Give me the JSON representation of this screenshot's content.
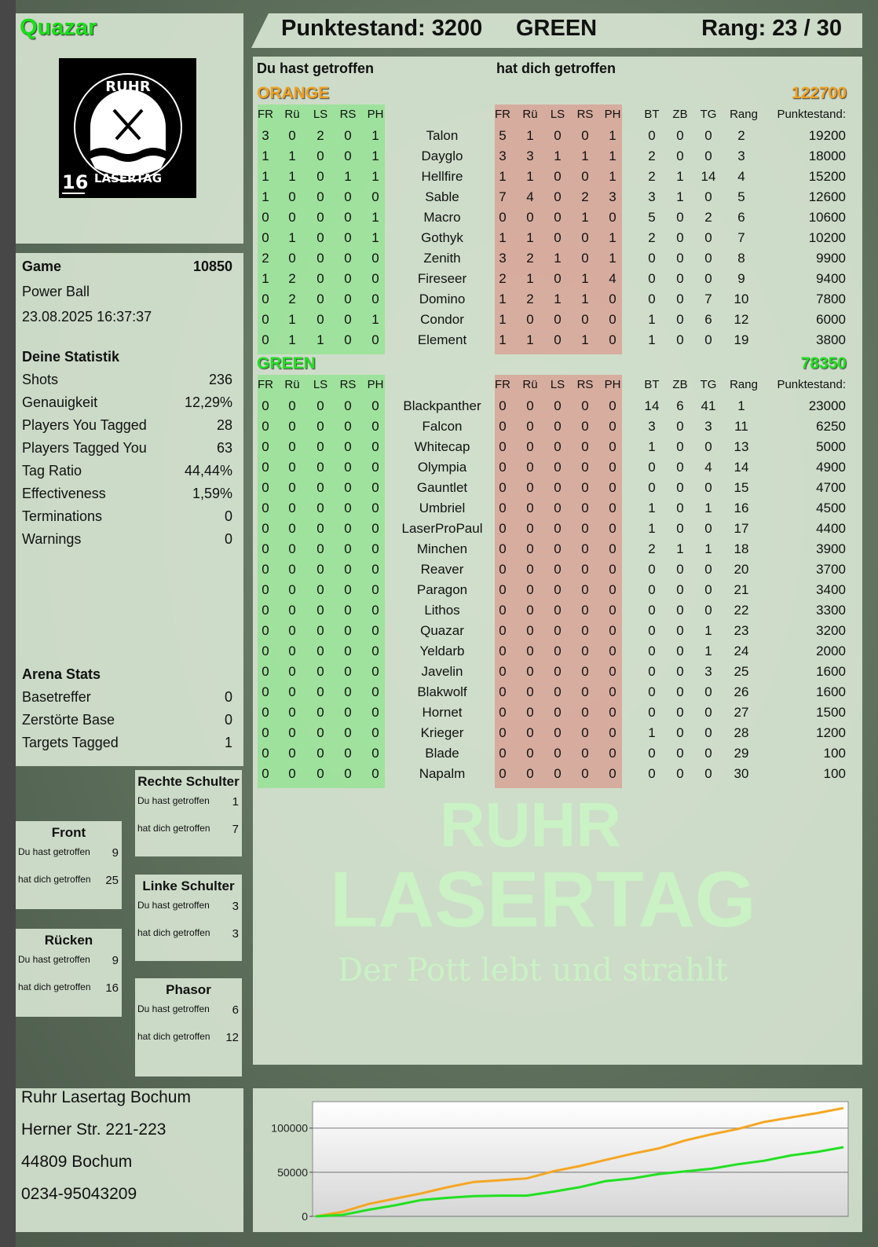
{
  "player": {
    "name": "Quazar",
    "logo_text": "RUHR LASERTAG",
    "logo_badge": "16"
  },
  "header": {
    "score_label": "Punktestand: 3200",
    "team": "GREEN",
    "rank_label": "Rang: 23 / 30"
  },
  "game": {
    "label": "Game",
    "id": "10850",
    "mode": "Power Ball",
    "datetime": "23.08.2025 16:37:37"
  },
  "stats": {
    "title": "Deine Statistik",
    "rows": [
      {
        "label": "Shots",
        "value": "236"
      },
      {
        "label": "Genauigkeit",
        "value": "12,29%"
      },
      {
        "label": "Players You Tagged",
        "value": "28"
      },
      {
        "label": "Players Tagged You",
        "value": "63"
      },
      {
        "label": "Tag Ratio",
        "value": "44,44%"
      },
      {
        "label": "Effectiveness",
        "value": "1,59%"
      },
      {
        "label": "Terminations",
        "value": "0"
      },
      {
        "label": "Warnings",
        "value": "0"
      }
    ]
  },
  "arena": {
    "title": "Arena Stats",
    "rows": [
      {
        "label": "Basetreffer",
        "value": "0"
      },
      {
        "label": "Zerstörte Base",
        "value": "0"
      },
      {
        "label": "Targets Tagged",
        "value": "1"
      }
    ]
  },
  "hit_zones": {
    "label_you_hit": "Du hast getroffen",
    "label_hit_you": "hat dich getroffen",
    "zones": [
      {
        "name": "Rechte Schulter",
        "you_hit": "1",
        "hit_you": "7"
      },
      {
        "name": "Front",
        "you_hit": "9",
        "hit_you": "25"
      },
      {
        "name": "Linke Schulter",
        "you_hit": "3",
        "hit_you": "3"
      },
      {
        "name": "Rücken",
        "you_hit": "9",
        "hit_you": "16"
      },
      {
        "name": "Phasor",
        "you_hit": "6",
        "hit_you": "12"
      }
    ]
  },
  "address": {
    "lines": [
      "Ruhr Lasertag Bochum",
      "Herner Str. 221-223",
      "44809 Bochum",
      "0234-95043209"
    ]
  },
  "table": {
    "you_hit_label": "Du hast getroffen",
    "hit_you_label": "hat dich getroffen",
    "hit_cols": [
      "FR",
      "Rü",
      "LS",
      "RS",
      "PH"
    ],
    "extra_cols": [
      "BT",
      "ZB",
      "TG",
      "Rang",
      "Punktestand:"
    ],
    "teams": [
      {
        "name": "ORANGE",
        "score": "122700",
        "color": "#f0a020",
        "players": [
          [
            "Talon",
            [
              3,
              0,
              2,
              0,
              1
            ],
            [
              5,
              1,
              0,
              0,
              1
            ],
            0,
            0,
            0,
            2,
            19200
          ],
          [
            "Dayglo",
            [
              1,
              1,
              0,
              0,
              1
            ],
            [
              3,
              3,
              1,
              1,
              1
            ],
            2,
            0,
            0,
            3,
            18000
          ],
          [
            "Hellfire",
            [
              1,
              1,
              0,
              1,
              1
            ],
            [
              1,
              1,
              0,
              0,
              1
            ],
            2,
            1,
            14,
            4,
            15200
          ],
          [
            "Sable",
            [
              1,
              0,
              0,
              0,
              0
            ],
            [
              7,
              4,
              0,
              2,
              3
            ],
            3,
            1,
            0,
            5,
            12600
          ],
          [
            "Macro",
            [
              0,
              0,
              0,
              0,
              1
            ],
            [
              0,
              0,
              0,
              1,
              0
            ],
            5,
            0,
            2,
            6,
            10600
          ],
          [
            "Gothyk",
            [
              0,
              1,
              0,
              0,
              1
            ],
            [
              1,
              1,
              0,
              0,
              1
            ],
            2,
            0,
            0,
            7,
            10200
          ],
          [
            "Zenith",
            [
              2,
              0,
              0,
              0,
              0
            ],
            [
              3,
              2,
              1,
              0,
              1
            ],
            0,
            0,
            0,
            8,
            9900
          ],
          [
            "Fireseer",
            [
              1,
              2,
              0,
              0,
              0
            ],
            [
              2,
              1,
              0,
              1,
              4
            ],
            0,
            0,
            0,
            9,
            9400
          ],
          [
            "Domino",
            [
              0,
              2,
              0,
              0,
              0
            ],
            [
              1,
              2,
              1,
              1,
              0
            ],
            0,
            0,
            7,
            10,
            7800
          ],
          [
            "Condor",
            [
              0,
              1,
              0,
              0,
              1
            ],
            [
              1,
              0,
              0,
              0,
              0
            ],
            1,
            0,
            6,
            12,
            6000
          ],
          [
            "Element",
            [
              0,
              1,
              1,
              0,
              0
            ],
            [
              1,
              1,
              0,
              1,
              0
            ],
            1,
            0,
            0,
            19,
            3800
          ]
        ]
      },
      {
        "name": "GREEN",
        "score": "78350",
        "color": "#22e022",
        "players": [
          [
            "Blackpanther",
            [
              0,
              0,
              0,
              0,
              0
            ],
            [
              0,
              0,
              0,
              0,
              0
            ],
            14,
            6,
            41,
            1,
            23000
          ],
          [
            "Falcon",
            [
              0,
              0,
              0,
              0,
              0
            ],
            [
              0,
              0,
              0,
              0,
              0
            ],
            3,
            0,
            3,
            11,
            6250
          ],
          [
            "Whitecap",
            [
              0,
              0,
              0,
              0,
              0
            ],
            [
              0,
              0,
              0,
              0,
              0
            ],
            1,
            0,
            0,
            13,
            5000
          ],
          [
            "Olympia",
            [
              0,
              0,
              0,
              0,
              0
            ],
            [
              0,
              0,
              0,
              0,
              0
            ],
            0,
            0,
            4,
            14,
            4900
          ],
          [
            "Gauntlet",
            [
              0,
              0,
              0,
              0,
              0
            ],
            [
              0,
              0,
              0,
              0,
              0
            ],
            0,
            0,
            0,
            15,
            4700
          ],
          [
            "Umbriel",
            [
              0,
              0,
              0,
              0,
              0
            ],
            [
              0,
              0,
              0,
              0,
              0
            ],
            1,
            0,
            1,
            16,
            4500
          ],
          [
            "LaserProPaul",
            [
              0,
              0,
              0,
              0,
              0
            ],
            [
              0,
              0,
              0,
              0,
              0
            ],
            1,
            0,
            0,
            17,
            4400
          ],
          [
            "Minchen",
            [
              0,
              0,
              0,
              0,
              0
            ],
            [
              0,
              0,
              0,
              0,
              0
            ],
            2,
            1,
            1,
            18,
            3900
          ],
          [
            "Reaver",
            [
              0,
              0,
              0,
              0,
              0
            ],
            [
              0,
              0,
              0,
              0,
              0
            ],
            0,
            0,
            0,
            20,
            3700
          ],
          [
            "Paragon",
            [
              0,
              0,
              0,
              0,
              0
            ],
            [
              0,
              0,
              0,
              0,
              0
            ],
            0,
            0,
            0,
            21,
            3400
          ],
          [
            "Lithos",
            [
              0,
              0,
              0,
              0,
              0
            ],
            [
              0,
              0,
              0,
              0,
              0
            ],
            0,
            0,
            0,
            22,
            3300
          ],
          [
            "Quazar",
            [
              0,
              0,
              0,
              0,
              0
            ],
            [
              0,
              0,
              0,
              0,
              0
            ],
            0,
            0,
            1,
            23,
            3200
          ],
          [
            "Yeldarb",
            [
              0,
              0,
              0,
              0,
              0
            ],
            [
              0,
              0,
              0,
              0,
              0
            ],
            0,
            0,
            1,
            24,
            2000
          ],
          [
            "Javelin",
            [
              0,
              0,
              0,
              0,
              0
            ],
            [
              0,
              0,
              0,
              0,
              0
            ],
            0,
            0,
            3,
            25,
            1600
          ],
          [
            "Blakwolf",
            [
              0,
              0,
              0,
              0,
              0
            ],
            [
              0,
              0,
              0,
              0,
              0
            ],
            0,
            0,
            0,
            26,
            1600
          ],
          [
            "Hornet",
            [
              0,
              0,
              0,
              0,
              0
            ],
            [
              0,
              0,
              0,
              0,
              0
            ],
            0,
            0,
            0,
            27,
            1500
          ],
          [
            "Krieger",
            [
              0,
              0,
              0,
              0,
              0
            ],
            [
              0,
              0,
              0,
              0,
              0
            ],
            1,
            0,
            0,
            28,
            1200
          ],
          [
            "Blade",
            [
              0,
              0,
              0,
              0,
              0
            ],
            [
              0,
              0,
              0,
              0,
              0
            ],
            0,
            0,
            0,
            29,
            100
          ],
          [
            "Napalm",
            [
              0,
              0,
              0,
              0,
              0
            ],
            [
              0,
              0,
              0,
              0,
              0
            ],
            0,
            0,
            0,
            30,
            100
          ]
        ]
      }
    ]
  },
  "watermark": {
    "line1": "RUHR",
    "line2": "LASERTAG",
    "slogan": "Der Pott lebt und strahlt"
  },
  "chart_data": {
    "type": "line",
    "title": "",
    "xlabel": "",
    "ylabel": "",
    "ylim": [
      0,
      130000
    ],
    "yticks": [
      0,
      50000,
      100000
    ],
    "ytick_labels": [
      "0",
      "50000",
      "100000"
    ],
    "grid": true,
    "legend": "none",
    "series": [
      {
        "color": "#f5a623",
        "values": [
          0,
          5000,
          14000,
          20000,
          26000,
          33000,
          39000,
          41000,
          43000,
          51000,
          57000,
          64000,
          71000,
          77000,
          86000,
          93000,
          99000,
          107000,
          112000,
          117000,
          122700
        ]
      },
      {
        "color": "#22e022",
        "values": [
          0,
          1500,
          7500,
          12500,
          18500,
          21000,
          23000,
          23500,
          23500,
          28000,
          33000,
          40000,
          43000,
          48000,
          51000,
          54000,
          59000,
          63000,
          69000,
          73000,
          78350
        ]
      }
    ]
  }
}
